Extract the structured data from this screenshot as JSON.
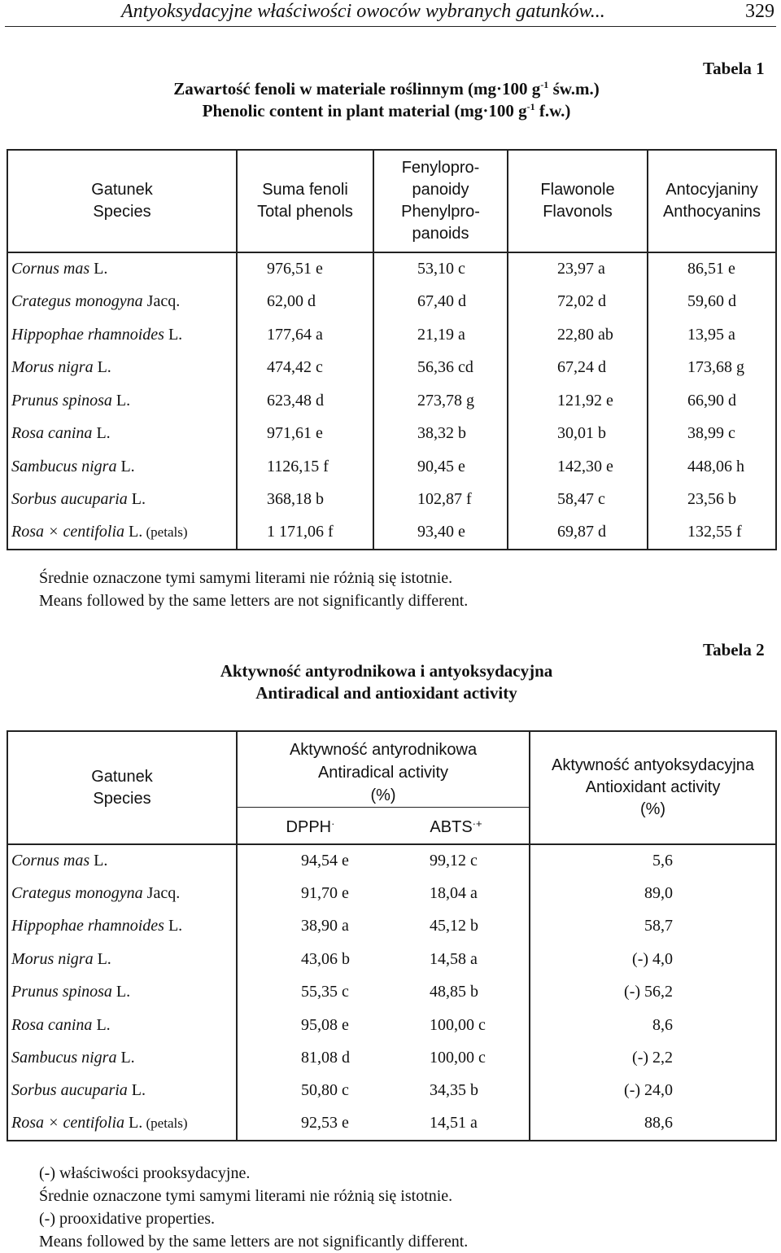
{
  "running_head": {
    "title": "Antyoksydacyjne właściwości owoców wybranych gatunków...",
    "page_number": "329"
  },
  "table1": {
    "label": "Tabela 1",
    "caption_pl": [
      "Zawartość fenoli w materiale roślinnym (mg·100 g",
      "-1",
      " św.m.)"
    ],
    "caption_en": [
      "Phenolic content in plant material (mg·100 g",
      "-1",
      " f.w.)"
    ],
    "headers": [
      [
        "Gatunek",
        "Species"
      ],
      [
        "Suma fenoli",
        "Total phenols"
      ],
      [
        "Fenylopro-",
        "panoidy",
        "Phenylpro-",
        "panoids"
      ],
      [
        "Flawonole",
        "Flavonols"
      ],
      [
        "Antocyjaniny",
        "Anthocyanins"
      ]
    ],
    "rows": [
      {
        "species": "Cornus mas",
        "author": " L.",
        "note": "",
        "values": [
          "976,51 e",
          "53,10 c",
          "23,97 a",
          "86,51 e"
        ]
      },
      {
        "species": "Crategus monogyna",
        "author": " Jacq.",
        "note": "",
        "values": [
          "62,00 d",
          "67,40 d",
          "72,02 d",
          "59,60 d"
        ]
      },
      {
        "species": "Hippophae rhamnoides",
        "author": " L.",
        "note": "",
        "values": [
          "177,64 a",
          "21,19 a",
          "22,80 ab",
          "13,95 a"
        ]
      },
      {
        "species": "Morus nigra",
        "author": " L.",
        "note": "",
        "values": [
          "474,42 c",
          "56,36 cd",
          "67,24 d",
          "173,68 g"
        ]
      },
      {
        "species": "Prunus spinosa",
        "author": " L.",
        "note": "",
        "values": [
          "623,48 d",
          "273,78 g",
          "121,92 e",
          "66,90 d"
        ]
      },
      {
        "species": "Rosa canina",
        "author": " L.",
        "note": "",
        "values": [
          "971,61 e",
          "38,32 b",
          "30,01 b",
          "38,99 c"
        ]
      },
      {
        "species": "Sambucus nigra",
        "author": " L.",
        "note": "",
        "values": [
          "1126,15 f",
          "90,45 e",
          "142,30 e",
          "448,06 h"
        ]
      },
      {
        "species": "Sorbus aucuparia",
        "author": " L.",
        "note": "",
        "values": [
          "368,18 b",
          "102,87 f",
          "58,47 c",
          "23,56 b"
        ]
      },
      {
        "species": "Rosa × centifolia",
        "author": " L.",
        "note": " (petals)",
        "values": [
          "1 171,06 f",
          "93,40 e",
          "69,87 d",
          "132,55 f"
        ]
      }
    ],
    "notes": [
      "Średnie oznaczone tymi samymi literami nie różnią się istotnie.",
      "Means followed by the same letters are not significantly different."
    ]
  },
  "table2": {
    "label": "Tabela 2",
    "caption_pl": "Aktywność antyrodnikowa i antyoksydacyjna",
    "caption_en": "Antiradical and antioxidant activity",
    "header_species": [
      "Gatunek",
      "Species"
    ],
    "header_antiradical": [
      "Aktywność antyrodnikowa",
      "Antiradical activity",
      "(%)"
    ],
    "header_dpph": [
      "DPPH",
      "·"
    ],
    "header_abts": [
      "ABTS",
      "·+"
    ],
    "header_antioxidant": [
      "Aktywność antyoksydacyjna",
      "Antioxidant activity",
      "(%)"
    ],
    "rows": [
      {
        "species": "Cornus mas",
        "author": " L.",
        "note": "",
        "values": [
          "94,54 e",
          "99,12 c",
          "5,6"
        ]
      },
      {
        "species": "Crategus monogyna",
        "author": " Jacq.",
        "note": "",
        "values": [
          "91,70 e",
          "18,04 a",
          "89,0"
        ]
      },
      {
        "species": "Hippophae rhamnoides",
        "author": " L.",
        "note": "",
        "values": [
          "38,90 a",
          "45,12 b",
          "58,7"
        ]
      },
      {
        "species": "Morus nigra",
        "author": " L.",
        "note": "",
        "values": [
          "43,06 b",
          "14,58 a",
          "(-) 4,0"
        ]
      },
      {
        "species": "Prunus spinosa",
        "author": " L.",
        "note": "",
        "values": [
          "55,35 c",
          "48,85 b",
          "(-) 56,2"
        ]
      },
      {
        "species": "Rosa canina",
        "author": " L.",
        "note": "",
        "values": [
          "95,08 e",
          "100,00 c",
          "8,6"
        ]
      },
      {
        "species": "Sambucus nigra",
        "author": " L.",
        "note": "",
        "values": [
          "81,08 d",
          "100,00 c",
          "(-) 2,2"
        ]
      },
      {
        "species": "Sorbus aucuparia",
        "author": " L.",
        "note": "",
        "values": [
          "50,80 c",
          "34,35 b",
          "(-) 24,0"
        ]
      },
      {
        "species": "Rosa × centifolia",
        "author": " L.",
        "note": " (petals)",
        "values": [
          "92,53 e",
          "14,51 a",
          "88,6"
        ]
      }
    ],
    "notes": [
      "(-) właściwości prooksydacyjne.",
      "Średnie oznaczone tymi samymi literami nie różnią się istotnie.",
      "(-) prooxidative properties.",
      "Means followed by the same letters are not significantly different."
    ]
  }
}
